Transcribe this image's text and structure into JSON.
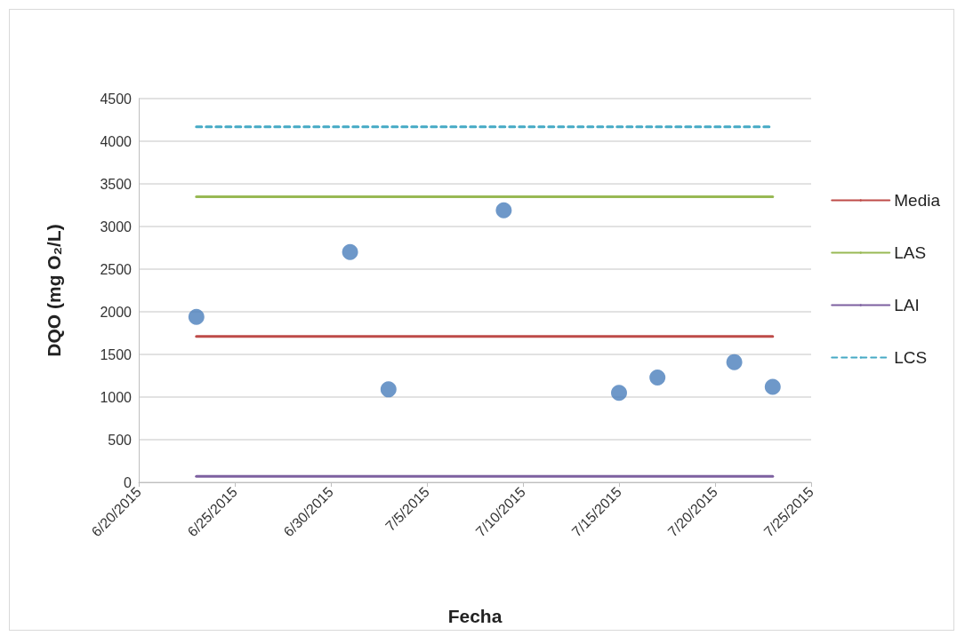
{
  "chart_data": {
    "type": "scatter",
    "xlabel": "Fecha",
    "ylabel": "DQO (mg O₂/L)",
    "x": [
      "2015-06-23",
      "2015-07-01",
      "2015-07-03",
      "2015-07-09",
      "2015-07-15",
      "2015-07-17",
      "2015-07-21",
      "2015-07-23"
    ],
    "series": [
      {
        "color": "#4a7ebb",
        "marker": "circle",
        "values": [
          1940,
          2700,
          1090,
          3190,
          1050,
          1230,
          1410,
          1120
        ]
      },
      {
        "type": "line",
        "name": "Media",
        "color": "#be4b48",
        "marker": "none",
        "line_style": "solid",
        "x": [
          "2015-06-23",
          "2015-07-23"
        ],
        "values": [
          1710,
          1710
        ]
      },
      {
        "type": "line",
        "name": "LAS",
        "color": "#98b954",
        "marker": "none",
        "line_style": "solid",
        "x": [
          "2015-06-23",
          "2015-07-23"
        ],
        "values": [
          3350,
          3350
        ]
      },
      {
        "type": "line",
        "name": "LAI",
        "color": "#7d60a0",
        "marker": "none",
        "line_style": "solid",
        "x": [
          "2015-06-23",
          "2015-07-23"
        ],
        "values": [
          70,
          70
        ]
      },
      {
        "type": "line",
        "name": "LCS",
        "color": "#46aac5",
        "marker": "none",
        "line_style": "dashed",
        "x": [
          "2015-06-23",
          "2015-07-23"
        ],
        "values": [
          4170,
          4170
        ]
      }
    ],
    "xlim": [
      "2015-06-20",
      "2015-07-25"
    ],
    "xticks": [
      {
        "value": "2015-06-20",
        "label": "6/20/2015"
      },
      {
        "value": "2015-06-25",
        "label": "6/25/2015"
      },
      {
        "value": "2015-06-30",
        "label": "6/30/2015"
      },
      {
        "value": "2015-07-05",
        "label": "7/5/2015"
      },
      {
        "value": "2015-07-10",
        "label": "7/10/2015"
      },
      {
        "value": "2015-07-15",
        "label": "7/15/2015"
      },
      {
        "value": "2015-07-20",
        "label": "7/20/2015"
      },
      {
        "value": "2015-07-25",
        "label": "7/25/2015"
      }
    ],
    "ylim": [
      0,
      4500
    ],
    "yticks": [
      0,
      500,
      1000,
      1500,
      2000,
      2500,
      3000,
      3500,
      4000,
      4500
    ],
    "grid": "y",
    "legend": "right"
  }
}
